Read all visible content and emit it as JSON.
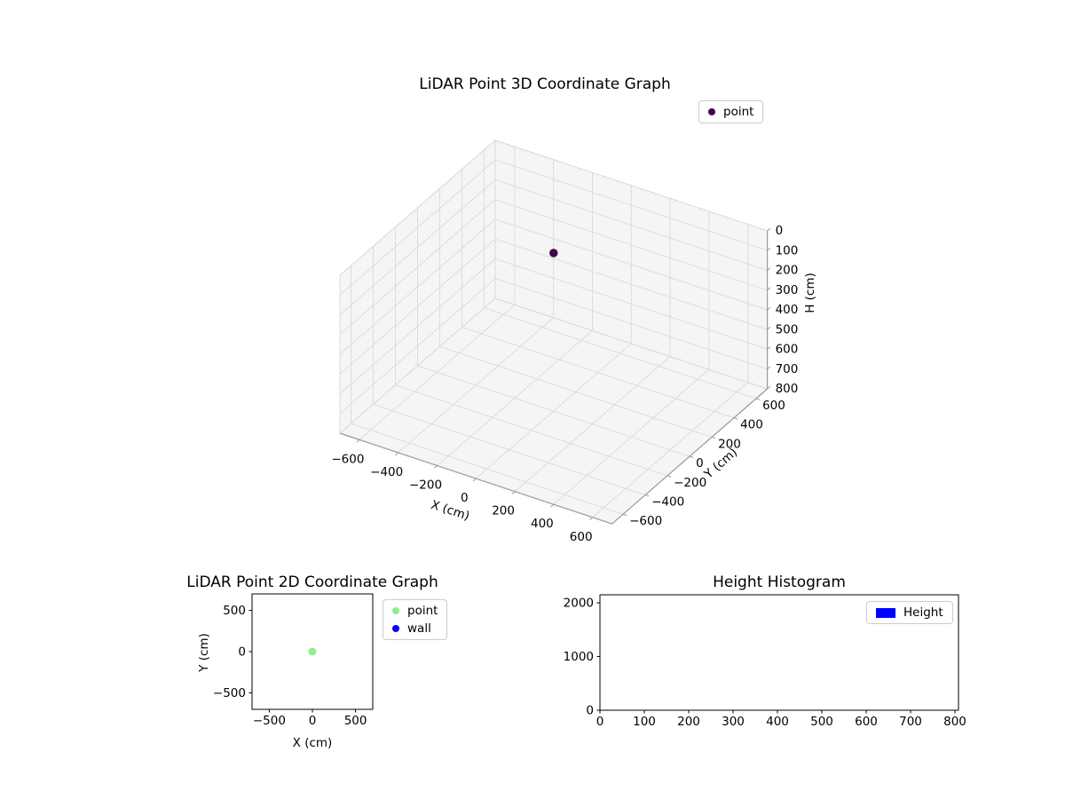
{
  "figure": {
    "background": "#ffffff"
  },
  "chart_data": [
    {
      "id": "lidar-3d",
      "type": "scatter3d",
      "title": "LiDAR Point 3D Coordinate Graph",
      "xlabel": "X (cm)",
      "ylabel": "Y (cm)",
      "zlabel": "H (cm)",
      "xlim": [
        -700,
        700
      ],
      "ylim": [
        -700,
        700
      ],
      "zlim": [
        0,
        800
      ],
      "zaxis_inverted": true,
      "xticks": [
        -600,
        -400,
        -200,
        0,
        200,
        400,
        600
      ],
      "yticks": [
        600,
        400,
        200,
        0,
        -200,
        -400,
        -600
      ],
      "zticks": [
        0,
        100,
        200,
        300,
        400,
        500,
        600,
        700,
        800
      ],
      "grid": true,
      "legend": [
        {
          "label": "point",
          "color": "#440154",
          "marker": "circle"
        }
      ],
      "points": [
        {
          "x": 0,
          "y": 0,
          "h": 0,
          "color": "#440154"
        }
      ]
    },
    {
      "id": "lidar-2d",
      "type": "scatter",
      "title": "LiDAR Point 2D Coordinate Graph",
      "xlabel": "X (cm)",
      "ylabel": "Y (cm)",
      "xlim": [
        -700,
        700
      ],
      "ylim": [
        -700,
        700
      ],
      "xticks": [
        -500,
        0,
        500
      ],
      "yticks": [
        500,
        0,
        -500
      ],
      "grid": false,
      "legend": [
        {
          "label": "point",
          "color": "#90ee90",
          "marker": "circle"
        },
        {
          "label": "wall",
          "color": "#0000ff",
          "marker": "circle"
        }
      ],
      "points": [
        {
          "x": 0,
          "y": 0,
          "color": "#90ee90"
        }
      ]
    },
    {
      "id": "height-histogram",
      "type": "bar",
      "title": "Height Histogram",
      "xlim": [
        0,
        808
      ],
      "ylim": [
        0,
        2150
      ],
      "xticks": [
        0,
        100,
        200,
        300,
        400,
        500,
        600,
        700,
        800
      ],
      "yticks": [
        0,
        1000,
        2000
      ],
      "grid": false,
      "legend": [
        {
          "label": "Height",
          "color": "#0000ff",
          "marker": "rect"
        }
      ],
      "bars": []
    }
  ]
}
